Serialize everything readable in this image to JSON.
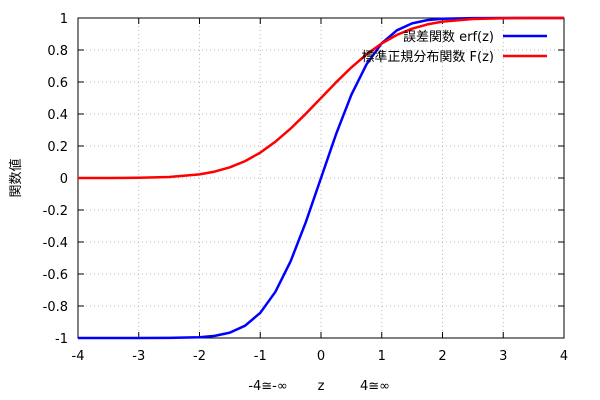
{
  "chart_data": {
    "type": "line",
    "ylabel": "関数値",
    "xlabel_parts": [
      "-4≅-∞",
      "z",
      "4≅∞"
    ],
    "xlim": [
      -4,
      4
    ],
    "ylim": [
      -1,
      1
    ],
    "xticks": [
      -4,
      -3,
      -2,
      -1,
      0,
      1,
      2,
      3,
      4
    ],
    "yticks": [
      -1,
      -0.8,
      -0.6,
      -0.4,
      -0.2,
      0,
      0.2,
      0.4,
      0.6,
      0.8,
      1
    ],
    "xtick_labels": [
      "-4",
      "-3",
      "-2",
      "-1",
      "0",
      "1",
      "2",
      "3",
      "4"
    ],
    "ytick_labels": [
      "-1",
      "-0.8",
      "-0.6",
      "-0.4",
      "-0.2",
      "0",
      "0.2",
      "0.4",
      "0.6",
      "0.8",
      "1"
    ],
    "grid": true,
    "legend_position": "top-right",
    "x": [
      -4,
      -3.5,
      -3,
      -2.5,
      -2,
      -1.75,
      -1.5,
      -1.25,
      -1,
      -0.75,
      -0.5,
      -0.25,
      0,
      0.25,
      0.5,
      0.75,
      1,
      1.25,
      1.5,
      1.75,
      2,
      2.5,
      3,
      3.5,
      4
    ],
    "series": [
      {
        "name": "誤差関数  erf(z)",
        "color": "#0000ff",
        "values": [
          -1.0,
          -1.0,
          -1.0,
          -0.9996,
          -0.9953,
          -0.9867,
          -0.9661,
          -0.9229,
          -0.8427,
          -0.7112,
          -0.5205,
          -0.2763,
          0.0,
          0.2763,
          0.5205,
          0.7112,
          0.8427,
          0.9229,
          0.9661,
          0.9867,
          0.9953,
          0.9996,
          1.0,
          1.0,
          1.0
        ]
      },
      {
        "name": "標準正規分布関数  F(z)",
        "color": "#ff0000",
        "values": [
          0.0,
          0.0002,
          0.0013,
          0.0062,
          0.0228,
          0.0401,
          0.0668,
          0.1056,
          0.1587,
          0.2266,
          0.3085,
          0.4013,
          0.5,
          0.5987,
          0.6915,
          0.7734,
          0.8413,
          0.8944,
          0.9332,
          0.9599,
          0.9772,
          0.9938,
          0.9987,
          0.9998,
          1.0
        ]
      }
    ]
  }
}
